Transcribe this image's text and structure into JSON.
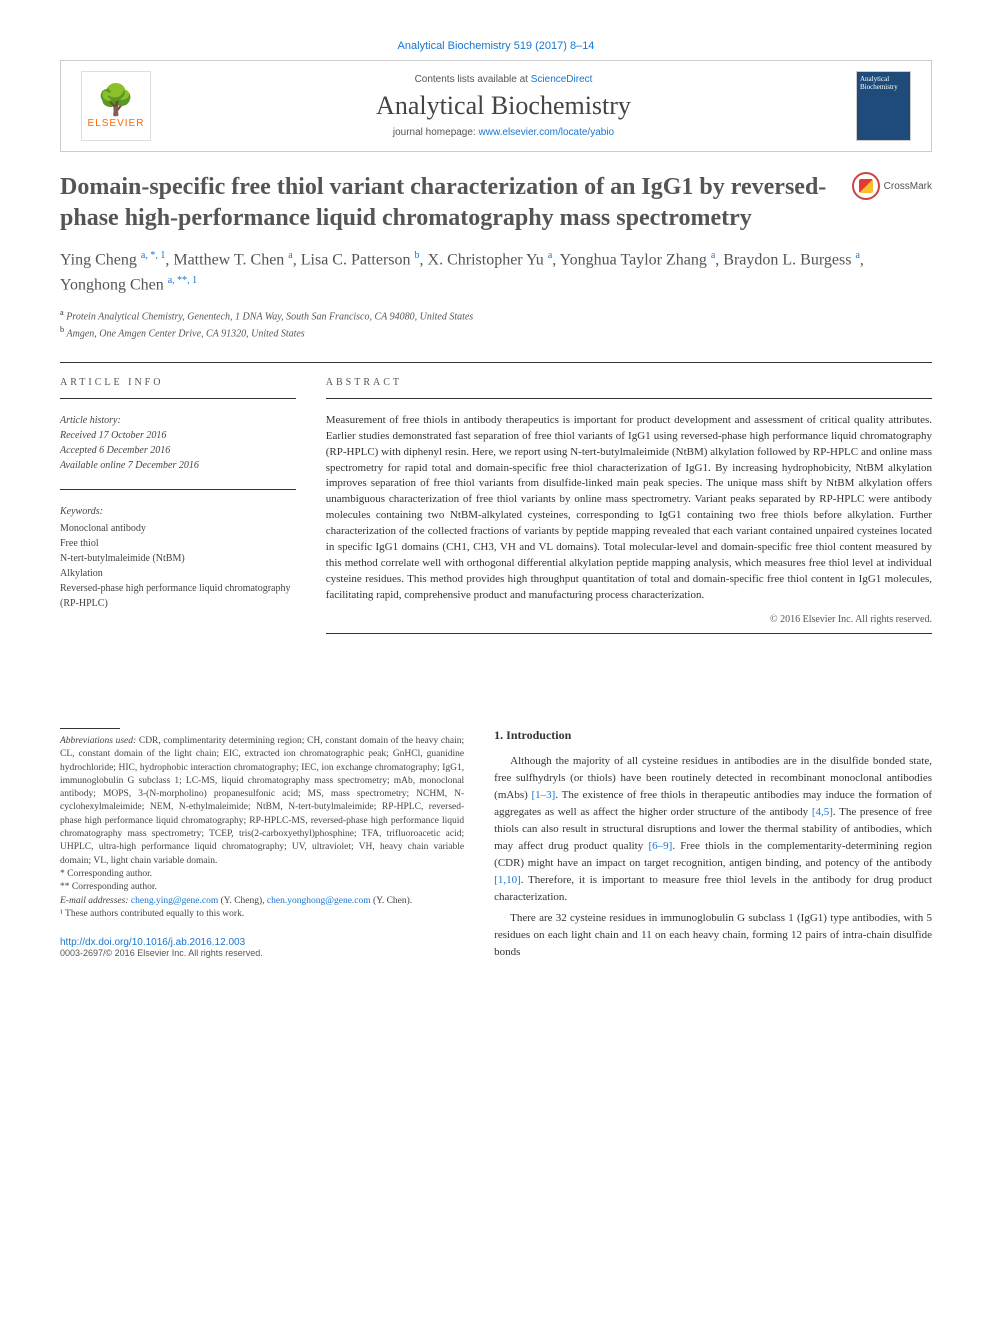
{
  "journal_ref": "Analytical Biochemistry 519 (2017) 8–14",
  "header": {
    "contents_prefix": "Contents lists available at ",
    "contents_link": "ScienceDirect",
    "journal_name": "Analytical Biochemistry",
    "homepage_prefix": "journal homepage: ",
    "homepage_link": "www.elsevier.com/locate/yabio",
    "publisher_label": "ELSEVIER",
    "cover_title": "Analytical Biochemistry"
  },
  "title": "Domain-specific free thiol variant characterization of an IgG1 by reversed-phase high-performance liquid chromatography mass spectrometry",
  "crossmark_label": "CrossMark",
  "authors_html": "Ying Cheng <sup>a, *, 1</sup>, Matthew T. Chen <sup>a</sup>, Lisa C. Patterson <sup>b</sup>, X. Christopher Yu <sup>a</sup>, Yonghua Taylor Zhang <sup>a</sup>, Braydon L. Burgess <sup>a</sup>, Yonghong Chen <sup>a, **, 1</sup>",
  "affiliations": {
    "a": "Protein Analytical Chemistry, Genentech, 1 DNA Way, South San Francisco, CA 94080, United States",
    "b": "Amgen, One Amgen Center Drive, CA 91320, United States"
  },
  "article_info": {
    "heading": "ARTICLE INFO",
    "history_label": "Article history:",
    "received": "Received 17 October 2016",
    "accepted": "Accepted 6 December 2016",
    "online": "Available online 7 December 2016",
    "keywords_label": "Keywords:",
    "keywords": [
      "Monoclonal antibody",
      "Free thiol",
      "N-tert-butylmaleimide (NtBM)",
      "Alkylation",
      "Reversed-phase high performance liquid chromatography (RP-HPLC)"
    ]
  },
  "abstract": {
    "heading": "ABSTRACT",
    "text": "Measurement of free thiols in antibody therapeutics is important for product development and assessment of critical quality attributes. Earlier studies demonstrated fast separation of free thiol variants of IgG1 using reversed-phase high performance liquid chromatography (RP-HPLC) with diphenyl resin. Here, we report using N-tert-butylmaleimide (NtBM) alkylation followed by RP-HPLC and online mass spectrometry for rapid total and domain-specific free thiol characterization of IgG1. By increasing hydrophobicity, NtBM alkylation improves separation of free thiol variants from disulfide-linked main peak species. The unique mass shift by NtBM alkylation offers unambiguous characterization of free thiol variants by online mass spectrometry. Variant peaks separated by RP-HPLC were antibody molecules containing two NtBM-alkylated cysteines, corresponding to IgG1 containing two free thiols before alkylation. Further characterization of the collected fractions of variants by peptide mapping revealed that each variant contained unpaired cysteines located in specific IgG1 domains (CH1, CH3, VH and VL domains). Total molecular-level and domain-specific free thiol content measured by this method correlate well with orthogonal differential alkylation peptide mapping analysis, which measures free thiol level at individual cysteine residues. This method provides high throughput quantitation of total and domain-specific free thiol content in IgG1 molecules, facilitating rapid, comprehensive product and manufacturing process characterization.",
    "copyright": "© 2016 Elsevier Inc. All rights reserved."
  },
  "footnotes": {
    "abbrev_label": "Abbreviations used:",
    "abbrev_text": " CDR, complimentarity determining region; CH, constant domain of the heavy chain; CL, constant domain of the light chain; EIC, extracted ion chromatographic peak; GnHCl, guanidine hydrochloride; HIC, hydrophobic interaction chromatography; IEC, ion exchange chromatography; IgG1, immunoglobulin G subclass 1; LC-MS, liquid chromatography mass spectrometry; mAb, monoclonal antibody; MOPS, 3-(N-morpholino) propanesulfonic acid; MS, mass spectrometry; NCHM, N-cyclohexylmaleimide; NEM, N-ethylmaleimide; NtBM, N-tert-butylmaleimide; RP-HPLC, reversed-phase high performance liquid chromatography; RP-HPLC-MS, reversed-phase high performance liquid chromatography mass spectrometry; TCEP, tris(2-carboxyethyl)phosphine; TFA, trifluoroacetic acid; UHPLC, ultra-high performance liquid chromatography; UV, ultraviolet; VH, heavy chain variable domain; VL, light chain variable domain.",
    "corr1": "* Corresponding author.",
    "corr2": "** Corresponding author.",
    "email_label": "E-mail addresses:",
    "email1": "cheng.ying@gene.com",
    "email1_name": " (Y. Cheng), ",
    "email2": "chen.yonghong@gene.com",
    "email2_name": " (Y. Chen).",
    "equal": "¹ These authors contributed equally to this work."
  },
  "intro": {
    "heading": "1. Introduction",
    "para1_pre": "Although the majority of all cysteine residues in antibodies are in the disulfide bonded state, free sulfhydryls (or thiols) have been routinely detected in recombinant monoclonal antibodies (mAbs) ",
    "ref1": "[1–3]",
    "para1_mid1": ". The existence of free thiols in therapeutic antibodies may induce the formation of aggregates as well as affect the higher order structure of the antibody ",
    "ref2": "[4,5]",
    "para1_mid2": ". The presence of free thiols can also result in structural disruptions and lower the thermal stability of antibodies, which may affect drug product quality ",
    "ref3": "[6–9]",
    "para1_mid3": ". Free thiols in the complementarity-determining region (CDR) might have an impact on target recognition, antigen binding, and potency of the antibody ",
    "ref4": "[1,10]",
    "para1_end": ". Therefore, it is important to measure free thiol levels in the antibody for drug product characterization.",
    "para2": "There are 32 cysteine residues in immunoglobulin G subclass 1 (IgG1) type antibodies, with 5 residues on each light chain and 11 on each heavy chain, forming 12 pairs of intra-chain disulfide bonds"
  },
  "doi": {
    "url": "http://dx.doi.org/10.1016/j.ab.2016.12.003",
    "issn": "0003-2697/© 2016 Elsevier Inc. All rights reserved."
  }
}
